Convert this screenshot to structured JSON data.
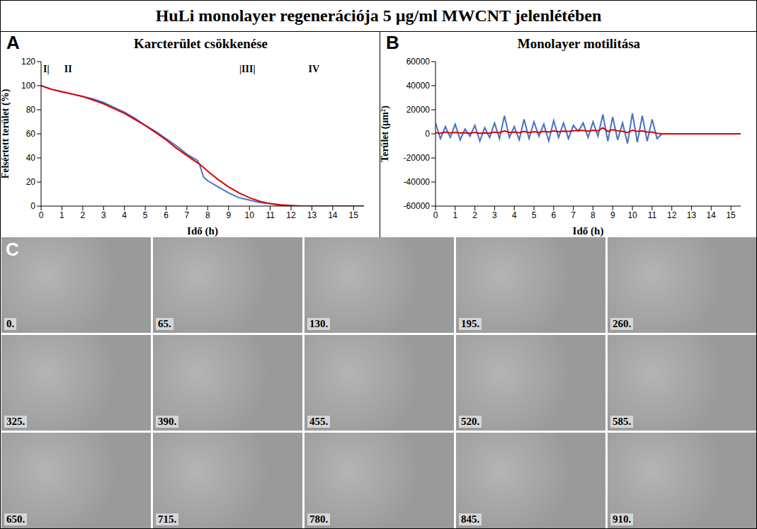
{
  "title": "HuLi monolayer regenerációja 5 µg/ml MWCNT jelenlétében",
  "chart_data": [
    {
      "panel": "A",
      "type": "line",
      "title": "Karcterület csökkenése",
      "x_label": "Idő (h)",
      "y_label": "Felsértett terület (%)",
      "x": [
        0,
        0.5,
        1,
        1.5,
        2,
        2.5,
        3,
        3.5,
        4,
        4.5,
        5,
        5.5,
        6,
        6.5,
        7,
        7.5,
        7.6,
        7.8,
        8,
        8.5,
        9,
        9.5,
        10,
        10.5,
        11,
        11.5,
        12,
        12.5,
        13,
        13.5,
        14,
        14.5,
        15,
        15.5
      ],
      "series": [
        {
          "color": "#4472c4",
          "values": [
            100,
            97,
            95,
            93,
            91,
            89,
            86,
            82,
            78,
            73,
            67,
            62,
            56,
            50,
            43,
            38,
            35,
            24,
            21,
            16,
            11,
            7,
            5,
            3,
            2,
            0.5,
            0,
            0,
            0,
            0,
            0,
            0,
            0,
            0
          ]
        },
        {
          "color": "#e00000",
          "values": [
            100,
            97,
            95,
            93,
            91,
            88,
            85,
            81,
            77,
            72,
            67,
            61,
            55,
            48,
            42,
            36,
            35,
            32,
            29,
            22,
            16,
            11,
            7,
            4,
            2,
            1,
            0.5,
            0,
            0,
            0,
            0,
            0,
            0,
            0
          ]
        }
      ],
      "xlim": [
        0,
        15.5
      ],
      "xticks": [
        0,
        1,
        2,
        3,
        4,
        5,
        6,
        7,
        8,
        9,
        10,
        11,
        12,
        13,
        14,
        15
      ],
      "ylim": [
        0,
        120
      ],
      "yticks": [
        0,
        20,
        40,
        60,
        80,
        100,
        120
      ],
      "grid": false,
      "annotations": [
        {
          "text": "I|",
          "x": 0.25
        },
        {
          "text": "II",
          "x": 1.3
        },
        {
          "text": "|III|",
          "x": 9.9
        },
        {
          "text": "IV",
          "x": 13.1
        }
      ]
    },
    {
      "panel": "B",
      "type": "line",
      "title": "Monolayer motilitása",
      "x_label": "Idő (h)",
      "y_label": "Terület (µm²)",
      "x": [
        0,
        0.25,
        0.5,
        0.75,
        1,
        1.25,
        1.5,
        1.75,
        2,
        2.25,
        2.5,
        2.75,
        3,
        3.25,
        3.5,
        3.75,
        4,
        4.25,
        4.5,
        4.75,
        5,
        5.25,
        5.5,
        5.75,
        6,
        6.25,
        6.5,
        6.75,
        7,
        7.25,
        7.5,
        7.75,
        8,
        8.25,
        8.5,
        8.75,
        9,
        9.25,
        9.5,
        9.75,
        10,
        10.25,
        10.5,
        10.75,
        11,
        11.25,
        11.5,
        12,
        12.5,
        13,
        13.5,
        14,
        14.5,
        15,
        15.5
      ],
      "series": [
        {
          "color": "#4472c4",
          "values": [
            9000,
            -4000,
            6000,
            -3000,
            8000,
            -5000,
            4000,
            -2000,
            7000,
            -6000,
            5000,
            -3000,
            9000,
            -4000,
            15000,
            -3000,
            6000,
            -5000,
            12000,
            -4000,
            10000,
            -2000,
            8000,
            -6000,
            11000,
            -3000,
            9000,
            -4000,
            7000,
            2000,
            9000,
            -3000,
            10000,
            -2000,
            16000,
            -6000,
            14000,
            -5000,
            9000,
            -8000,
            17000,
            -7000,
            15000,
            -6000,
            12000,
            -4000,
            0,
            0,
            0,
            0,
            0,
            0,
            0,
            0,
            0
          ]
        },
        {
          "color": "#e00000",
          "values": [
            1000,
            500,
            1500,
            800,
            1200,
            700,
            900,
            600,
            1100,
            500,
            800,
            600,
            1500,
            900,
            2500,
            1200,
            1500,
            900,
            2000,
            1000,
            1800,
            1200,
            2000,
            1500,
            2500,
            1800,
            2200,
            2000,
            2500,
            3000,
            2800,
            2200,
            3000,
            2500,
            5000,
            2000,
            3500,
            2500,
            2000,
            1000,
            3000,
            2000,
            2500,
            1500,
            1500,
            500,
            0,
            0,
            0,
            0,
            0,
            0,
            0,
            0,
            0
          ]
        }
      ],
      "xlim": [
        0,
        15.5
      ],
      "xticks": [
        0,
        1,
        2,
        3,
        4,
        5,
        6,
        7,
        8,
        9,
        10,
        11,
        12,
        13,
        14,
        15
      ],
      "ylim": [
        -60000,
        60000
      ],
      "yticks": [
        -60000,
        -40000,
        -20000,
        0,
        20000,
        40000,
        60000
      ],
      "grid": false
    }
  ],
  "images": {
    "panel": "C",
    "labels": [
      "0.",
      "65.",
      "130.",
      "195.",
      "260.",
      "325.",
      "390.",
      "455.",
      "520.",
      "585.",
      "650.",
      "715.",
      "780.",
      "845.",
      "910."
    ]
  }
}
